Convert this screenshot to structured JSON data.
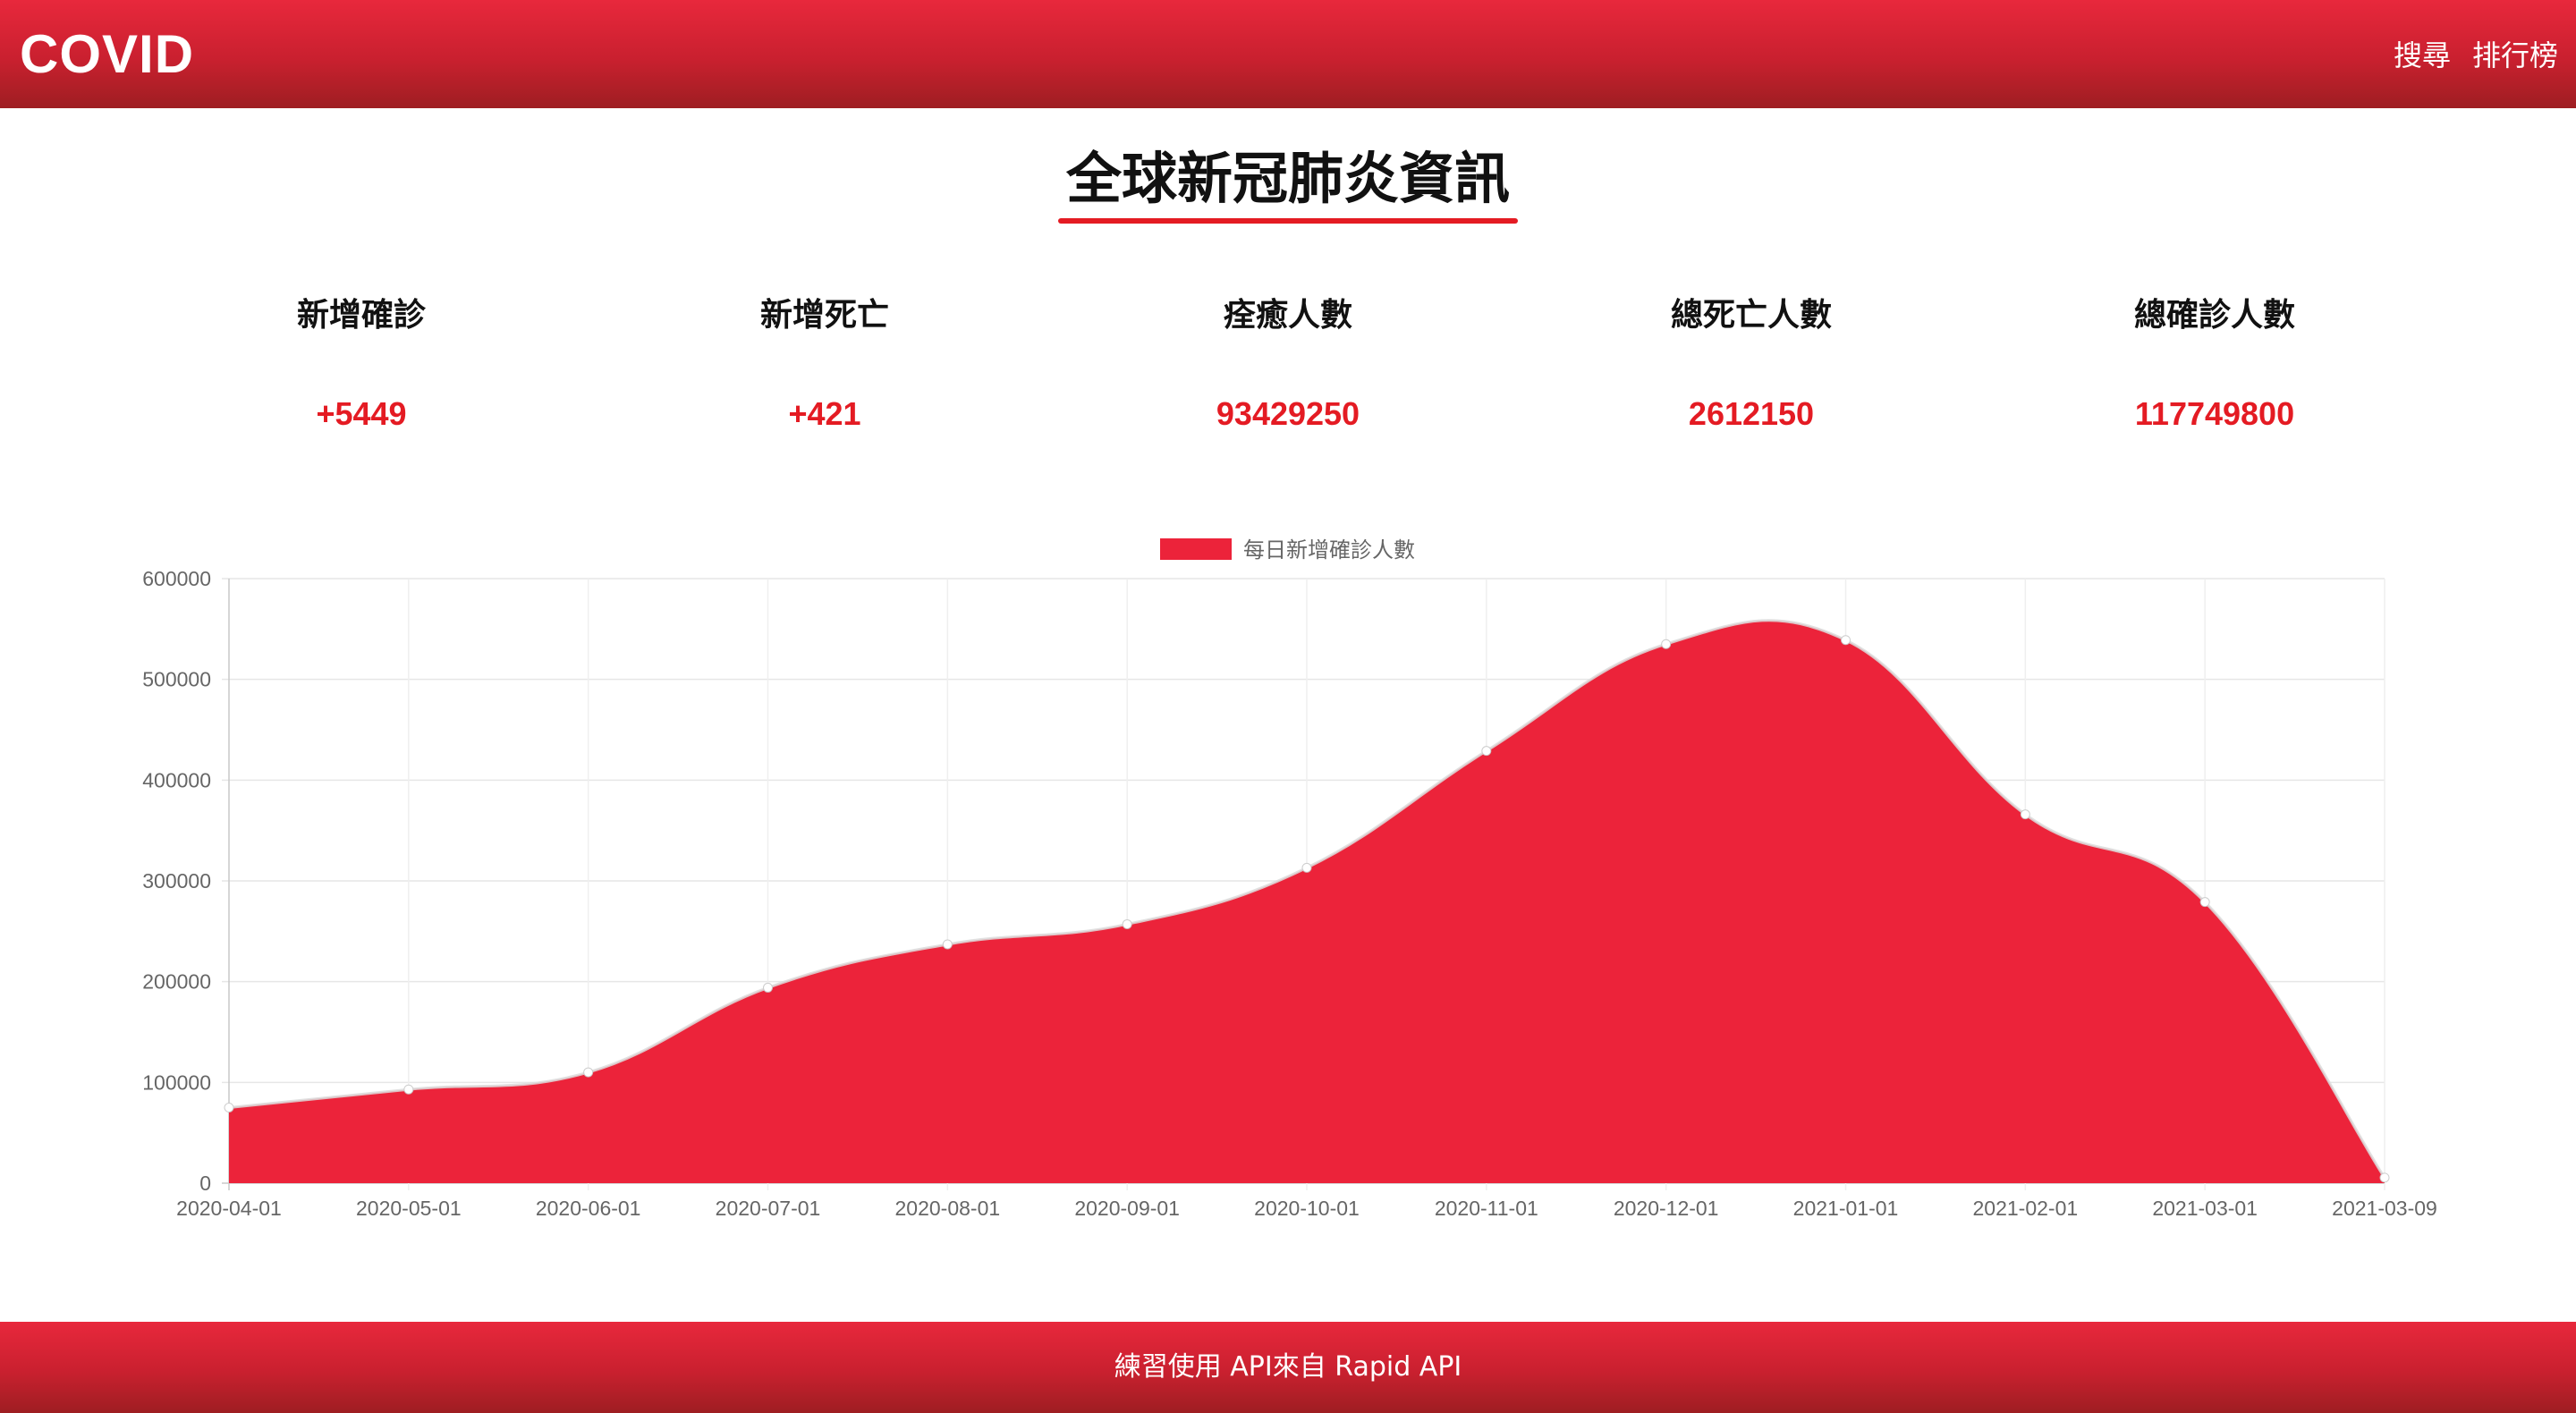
{
  "header": {
    "brand": "COVID",
    "nav": [
      "搜尋",
      "排行榜"
    ]
  },
  "page_title": "全球新冠肺炎資訊",
  "stats": [
    {
      "label": "新增確診",
      "value": "+5449"
    },
    {
      "label": "新增死亡",
      "value": "+421"
    },
    {
      "label": "痊癒人數",
      "value": "93429250"
    },
    {
      "label": "總死亡人數",
      "value": "2612150"
    },
    {
      "label": "總確診人數",
      "value": "117749800"
    }
  ],
  "colors": {
    "accent": "#e41b23",
    "area_fill": "#ec233a",
    "header_top": "#e8283c",
    "header_bottom": "#9e1e22"
  },
  "chart_data": {
    "type": "area",
    "title": "",
    "xlabel": "",
    "ylabel": "",
    "x": [
      "2020-04-01",
      "2020-05-01",
      "2020-06-01",
      "2020-07-01",
      "2020-08-01",
      "2020-09-01",
      "2020-10-01",
      "2020-11-01",
      "2020-12-01",
      "2021-01-01",
      "2021-02-01",
      "2021-03-01",
      "2021-03-09"
    ],
    "series": [
      {
        "name": "每日新增確診人數",
        "values": [
          75000,
          93000,
          110000,
          194000,
          237000,
          257000,
          313000,
          429000,
          535000,
          539000,
          366000,
          279000,
          5449
        ]
      }
    ],
    "ylim": [
      0,
      600000
    ],
    "yticks": [
      "0",
      "100000",
      "200000",
      "300000",
      "400000",
      "500000",
      "600000"
    ],
    "grid": true,
    "legend_position": "top-center"
  },
  "footer": {
    "text": "練習使用 API來自 Rapid API"
  }
}
